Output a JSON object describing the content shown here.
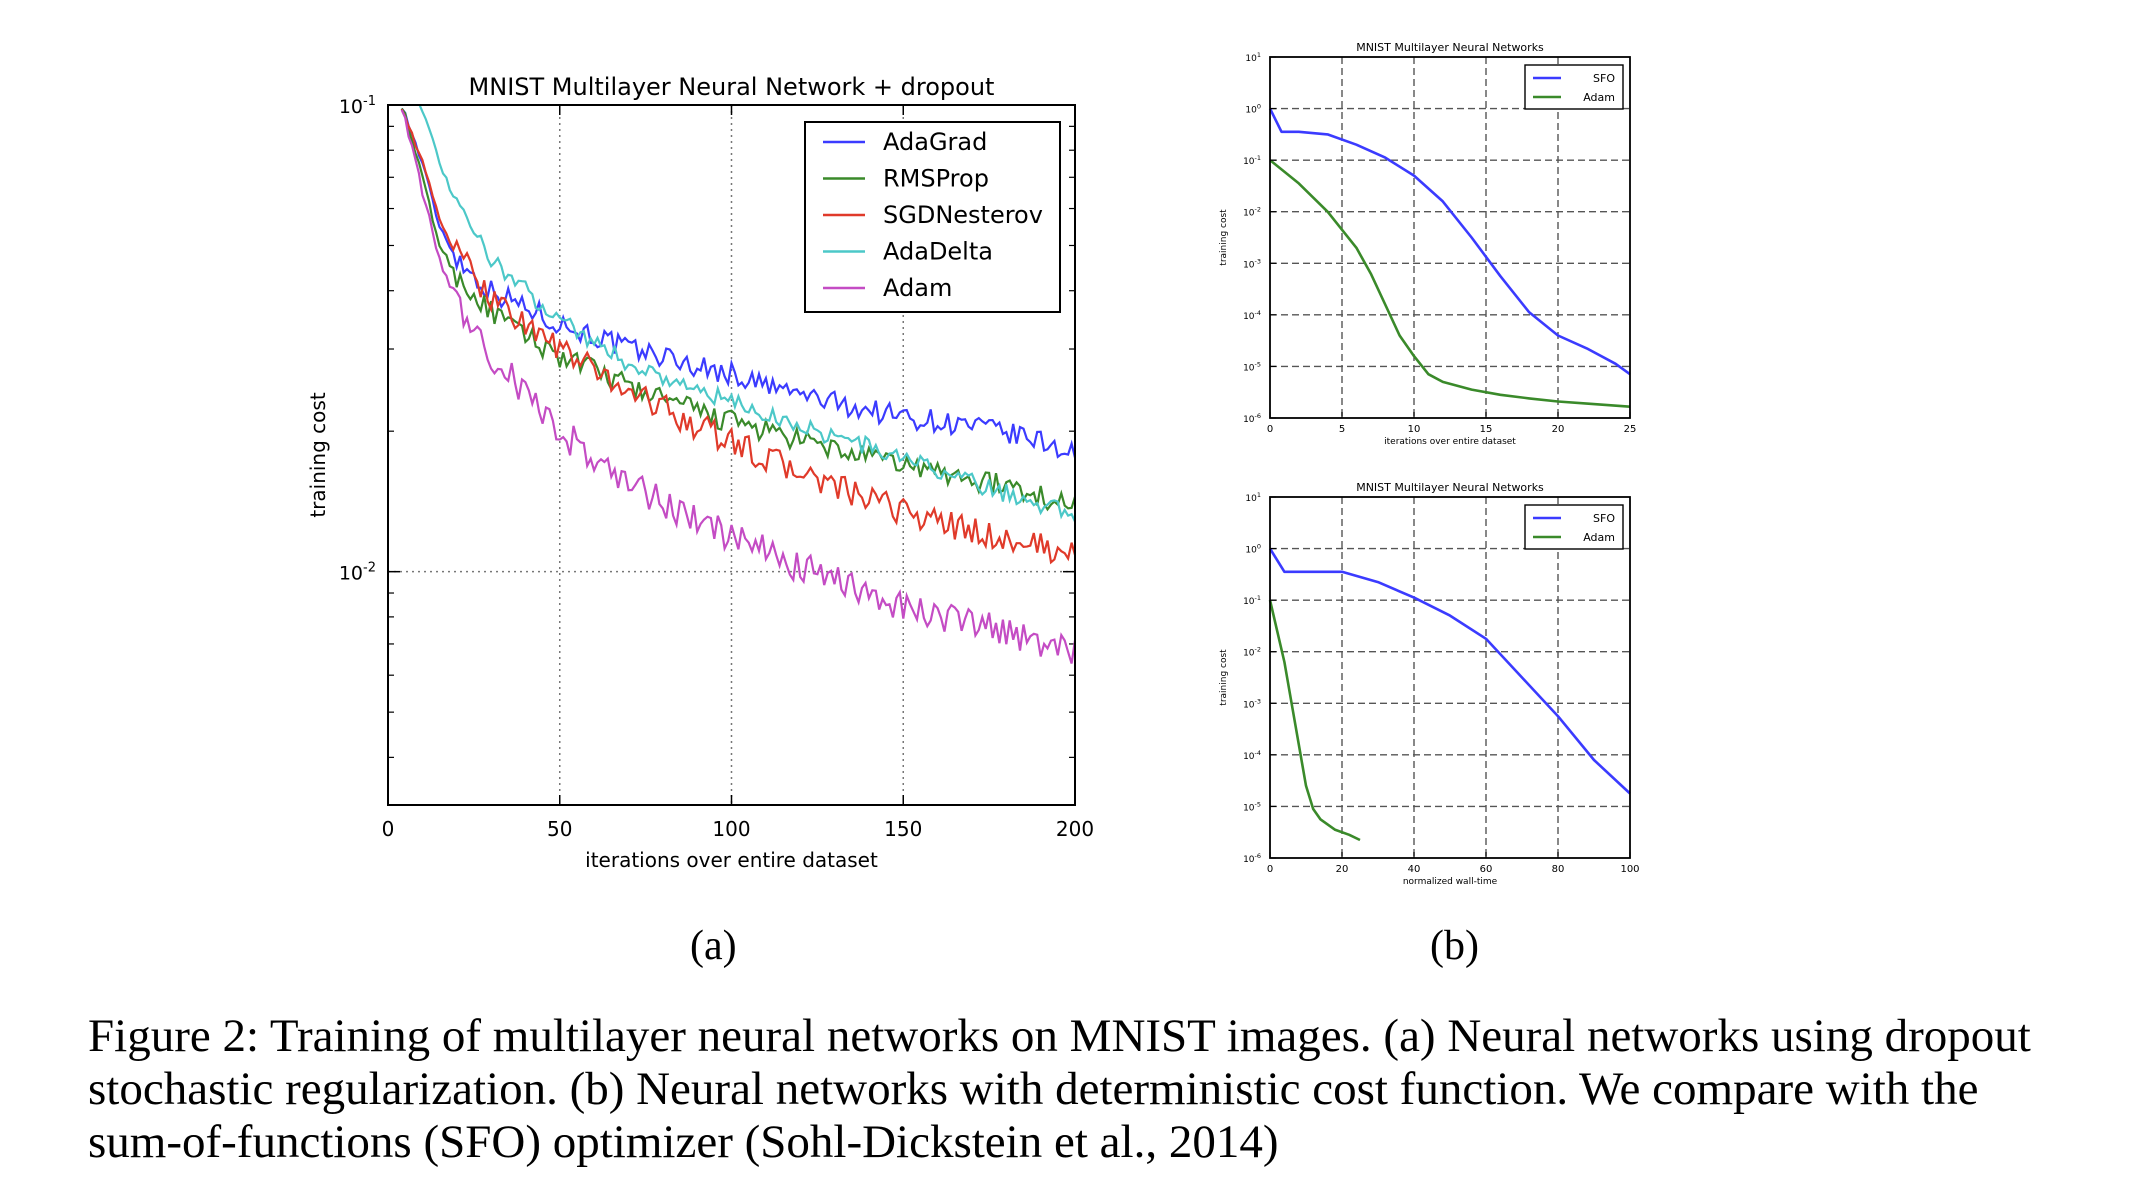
{
  "figure": {
    "sublabel_a": "(a)",
    "sublabel_b": "(b)",
    "caption": "Figure 2: Training of multilayer neural networks on MNIST images. (a) Neural networks using dropout stochastic regularization. (b) Neural networks with deterministic cost function. We compare with the sum-of-functions (SFO) optimizer (Sohl-Dickstein et al., 2014)"
  },
  "colors": {
    "AdaGrad": "#3b3bff",
    "RMSProp": "#3a8a2a",
    "SGDNesterov": "#e03a2a",
    "AdaDelta": "#4cc8c8",
    "Adam": "#c44cc4",
    "SFO": "#3b3bff",
    "AdamB": "#3a8a2a"
  },
  "chart_data": [
    {
      "id": "a",
      "type": "line",
      "title": "MNIST Multilayer Neural Network + dropout",
      "xlabel": "iterations over entire dataset",
      "ylabel": "training cost",
      "xlim": [
        0,
        200
      ],
      "ylim_log10": [
        -2.5,
        -1
      ],
      "y_scale": "log",
      "x_ticks": [
        "0",
        "50",
        "100",
        "150",
        "200"
      ],
      "y_ticks": [
        {
          "value": 0.1,
          "base": "10",
          "exp": "-1"
        },
        {
          "value": 0.01,
          "base": "10",
          "exp": "-2"
        }
      ],
      "grid": true,
      "legend_position": "top-right",
      "x": [
        4,
        10,
        15,
        20,
        25,
        30,
        40,
        50,
        60,
        70,
        80,
        90,
        100,
        110,
        120,
        130,
        140,
        150,
        160,
        170,
        180,
        190,
        200
      ],
      "series": [
        {
          "name": "AdaGrad",
          "noise": 0.025,
          "values": [
            0.1,
            0.075,
            0.055,
            0.047,
            0.043,
            0.04,
            0.037,
            0.034,
            0.032,
            0.03,
            0.029,
            0.0275,
            0.0265,
            0.025,
            0.024,
            0.023,
            0.0222,
            0.0215,
            0.021,
            0.0205,
            0.0198,
            0.019,
            0.018
          ]
        },
        {
          "name": "RMSProp",
          "noise": 0.025,
          "values": [
            0.1,
            0.07,
            0.05,
            0.043,
            0.039,
            0.036,
            0.032,
            0.029,
            0.027,
            0.025,
            0.0235,
            0.022,
            0.021,
            0.02,
            0.019,
            0.0183,
            0.0175,
            0.017,
            0.0163,
            0.0158,
            0.0152,
            0.0145,
            0.0138
          ]
        },
        {
          "name": "SGDNesterov",
          "noise": 0.03,
          "values": [
            0.1,
            0.075,
            0.057,
            0.048,
            0.043,
            0.039,
            0.034,
            0.03,
            0.027,
            0.0245,
            0.0225,
            0.0205,
            0.019,
            0.0175,
            0.0163,
            0.0152,
            0.0142,
            0.0135,
            0.0128,
            0.0122,
            0.0117,
            0.0113,
            0.0108
          ]
        },
        {
          "name": "AdaDelta",
          "noise": 0.02,
          "values": [
            0.12,
            0.098,
            0.075,
            0.061,
            0.053,
            0.047,
            0.04,
            0.035,
            0.031,
            0.028,
            0.0262,
            0.0245,
            0.023,
            0.0218,
            0.0205,
            0.0195,
            0.0185,
            0.0175,
            0.0165,
            0.0155,
            0.0147,
            0.014,
            0.0132
          ]
        },
        {
          "name": "Adam",
          "noise": 0.035,
          "values": [
            0.1,
            0.065,
            0.047,
            0.038,
            0.033,
            0.029,
            0.024,
            0.02,
            0.0175,
            0.0155,
            0.014,
            0.0128,
            0.0118,
            0.011,
            0.0102,
            0.0095,
            0.009,
            0.0085,
            0.0081,
            0.0077,
            0.0074,
            0.0071,
            0.0068
          ]
        }
      ]
    },
    {
      "id": "b1",
      "type": "line",
      "title": "MNIST Multilayer Neural Networks",
      "xlabel": "iterations over entire dataset",
      "ylabel": "training cost",
      "xlim": [
        0,
        25
      ],
      "ylim_log10": [
        -6,
        1
      ],
      "y_scale": "log",
      "x_ticks": [
        "0",
        "5",
        "10",
        "15",
        "20",
        "25"
      ],
      "y_tick_exps": [
        "1",
        "0",
        "-1",
        "-2",
        "-3",
        "-4",
        "-5",
        "-6"
      ],
      "grid": true,
      "legend_position": "top-right",
      "series": [
        {
          "name": "SFO",
          "x": [
            0,
            0.8,
            2,
            4,
            6,
            8,
            10,
            12,
            14,
            16,
            18,
            20,
            22,
            24,
            25
          ],
          "log10": [
            0,
            -0.45,
            -0.45,
            -0.5,
            -0.7,
            -0.95,
            -1.3,
            -1.8,
            -2.5,
            -3.25,
            -3.95,
            -4.4,
            -4.65,
            -4.95,
            -5.15
          ]
        },
        {
          "name": "Adam",
          "x": [
            0,
            2,
            4,
            6,
            7,
            8,
            9,
            10,
            11,
            12,
            14,
            16,
            18,
            20,
            22,
            25
          ],
          "log10": [
            -1,
            -1.45,
            -2.0,
            -2.7,
            -3.2,
            -3.8,
            -4.4,
            -4.8,
            -5.15,
            -5.3,
            -5.45,
            -5.55,
            -5.62,
            -5.68,
            -5.72,
            -5.78
          ]
        }
      ]
    },
    {
      "id": "b2",
      "type": "line",
      "title": "MNIST Multilayer Neural Networks",
      "xlabel": "normalized wall-time",
      "ylabel": "training cost",
      "xlim": [
        0,
        100
      ],
      "ylim_log10": [
        -6,
        1
      ],
      "y_scale": "log",
      "x_ticks": [
        "0",
        "20",
        "40",
        "60",
        "80",
        "100"
      ],
      "y_tick_exps": [
        "1",
        "0",
        "-1",
        "-2",
        "-3",
        "-4",
        "-5",
        "-6"
      ],
      "grid": true,
      "legend_position": "top-right",
      "series": [
        {
          "name": "SFO",
          "x": [
            0,
            4,
            12,
            20,
            30,
            40,
            50,
            60,
            70,
            80,
            90,
            100
          ],
          "log10": [
            0,
            -0.45,
            -0.45,
            -0.45,
            -0.65,
            -0.95,
            -1.3,
            -1.75,
            -2.5,
            -3.25,
            -4.1,
            -4.75
          ]
        },
        {
          "name": "Adam",
          "x": [
            0,
            2,
            4,
            6,
            8,
            10,
            12,
            14,
            18,
            22,
            25
          ],
          "log10": [
            -1,
            -1.6,
            -2.2,
            -3.0,
            -3.8,
            -4.6,
            -5.05,
            -5.25,
            -5.45,
            -5.55,
            -5.65
          ]
        }
      ]
    }
  ]
}
